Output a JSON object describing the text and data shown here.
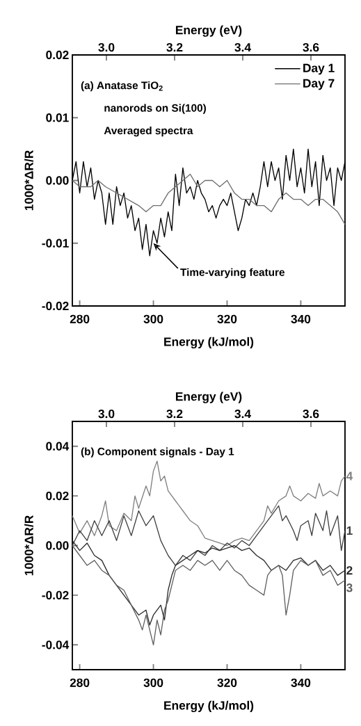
{
  "chart_data": [
    {
      "type": "line",
      "xlabel": "Energy (kJ/mol)",
      "x2label": "Energy (eV)",
      "ylabel": "1000*ΔR/R",
      "xlim": [
        278,
        352
      ],
      "xticks": [
        280,
        300,
        320,
        340
      ],
      "x2lim": [
        2.9,
        3.7
      ],
      "x2ticks": [
        {
          "value": 3.0,
          "label": "3.0"
        },
        3.2,
        3.4,
        3.6
      ],
      "ylim": [
        -0.02,
        0.02
      ],
      "yticks": [
        -0.02,
        -0.01,
        {
          "value": 0,
          "label": "0.00"
        },
        0.01,
        0.02
      ],
      "legend": "top right",
      "marker": "none",
      "annotations": [
        "(a) Anatase TiO$_{2}$",
        "nanorods on Si(100)",
        "Averaged spectra",
        {
          "text": "Time-varying feature",
          "x": 300,
          "y": -0.01
        }
      ],
      "series": [
        {
          "name": "Day 1",
          "color": "#000000",
          "x": [
            278,
            279,
            280,
            281,
            282,
            283,
            284,
            285,
            286,
            287,
            288,
            289,
            290,
            291,
            292,
            293,
            294,
            295,
            296,
            297,
            298,
            299,
            300,
            301,
            302,
            303,
            304,
            305,
            306,
            307,
            308,
            309,
            310,
            311,
            312,
            313,
            314,
            315,
            316,
            317,
            318,
            319,
            320,
            321,
            322,
            323,
            324,
            325,
            326,
            327,
            328,
            329,
            330,
            331,
            332,
            333,
            334,
            335,
            336,
            337,
            338,
            339,
            340,
            341,
            342,
            343,
            344,
            345,
            346,
            347,
            348,
            349,
            350,
            351,
            352
          ],
          "values": [
            0.0,
            0.003,
            -0.002,
            0.003,
            -0.001,
            0.002,
            -0.003,
            0.0,
            -0.002,
            -0.007,
            -0.002,
            -0.007,
            -0.001,
            -0.004,
            -0.002,
            -0.006,
            -0.004,
            -0.008,
            -0.006,
            -0.011,
            -0.007,
            -0.012,
            -0.008,
            -0.01,
            -0.006,
            -0.009,
            -0.005,
            -0.008,
            0.001,
            -0.004,
            0.002,
            -0.002,
            -0.001,
            -0.003,
            0.0,
            -0.002,
            -0.003,
            -0.005,
            -0.004,
            -0.006,
            -0.004,
            -0.003,
            -0.004,
            -0.002,
            -0.005,
            -0.008,
            -0.006,
            -0.003,
            -0.004,
            -0.002,
            -0.004,
            -0.001,
            0.003,
            -0.001,
            0.003,
            0.0,
            0.002,
            -0.003,
            0.004,
            0.0,
            0.005,
            -0.001,
            0.002,
            -0.002,
            0.005,
            -0.001,
            0.003,
            -0.004,
            0.004,
            0.0,
            0.002,
            -0.004,
            0.002,
            0.0,
            0.003
          ]
        },
        {
          "name": "Day 7",
          "color": "#6e6e6e",
          "x": [
            278,
            280,
            283,
            285,
            287,
            290,
            293,
            296,
            298,
            300,
            302,
            304,
            306,
            308,
            310,
            312,
            314,
            316,
            318,
            320,
            322,
            324,
            326,
            328,
            330,
            332,
            334,
            336,
            338,
            340,
            342,
            344,
            346,
            348,
            350,
            352
          ],
          "values": [
            0.0,
            -0.001,
            -0.001,
            0.0,
            -0.001,
            -0.002,
            -0.003,
            -0.004,
            -0.005,
            -0.004,
            -0.004,
            -0.002,
            -0.001,
            0.0,
            0.001,
            -0.001,
            0.0,
            0.0,
            -0.001,
            0.0,
            -0.002,
            -0.003,
            -0.003,
            -0.004,
            -0.004,
            -0.005,
            -0.003,
            -0.002,
            -0.003,
            -0.003,
            -0.004,
            -0.003,
            -0.003,
            -0.004,
            -0.005,
            -0.007
          ]
        }
      ]
    },
    {
      "type": "line",
      "xlabel": "Energy (kJ/mol)",
      "x2label": "Energy (eV)",
      "ylabel": "1000*ΔR/R",
      "xlim": [
        278,
        352
      ],
      "xticks": [
        280,
        300,
        320,
        340
      ],
      "x2lim": [
        2.9,
        3.7
      ],
      "x2ticks": [
        {
          "value": 3.0,
          "label": "3.0"
        },
        3.2,
        3.4,
        3.6
      ],
      "ylim": [
        -0.05,
        0.05
      ],
      "yticks": [
        -0.04,
        -0.02,
        {
          "value": 0,
          "label": "0.00"
        },
        0.02,
        0.04
      ],
      "marker": "none",
      "annotations": [
        "(b) Component signals - Day 1"
      ],
      "series": [
        {
          "name": "4",
          "color": "#808080",
          "x": [
            278,
            280,
            282,
            284,
            286,
            287,
            288,
            290,
            292,
            294,
            295,
            296,
            298,
            299,
            300,
            301,
            302,
            303,
            304,
            306,
            308,
            310,
            312,
            314,
            316,
            318,
            320,
            322,
            324,
            326,
            328,
            330,
            331,
            332,
            334,
            336,
            337,
            338,
            340,
            342,
            344,
            345,
            346,
            348,
            350,
            351,
            352
          ],
          "values": [
            0.012,
            0.005,
            0.01,
            0.004,
            0.012,
            0.018,
            0.008,
            0.006,
            0.013,
            0.01,
            0.02,
            0.015,
            0.024,
            0.02,
            0.03,
            0.034,
            0.026,
            0.028,
            0.022,
            0.018,
            0.014,
            0.01,
            0.008,
            0.003,
            0.002,
            0.001,
            0.0,
            0.002,
            0.003,
            0.002,
            0.006,
            0.01,
            0.016,
            0.013,
            0.018,
            0.02,
            0.024,
            0.02,
            0.018,
            0.021,
            0.019,
            0.025,
            0.02,
            0.022,
            0.02,
            0.026,
            0.028
          ]
        },
        {
          "name": "1",
          "color": "#404040",
          "x": [
            278,
            280,
            282,
            284,
            286,
            288,
            290,
            292,
            294,
            296,
            298,
            300,
            302,
            304,
            306,
            308,
            310,
            312,
            314,
            316,
            318,
            320,
            322,
            324,
            326,
            328,
            330,
            332,
            334,
            335,
            336,
            338,
            339,
            340,
            342,
            343,
            344,
            346,
            347,
            348,
            350,
            351,
            352
          ],
          "values": [
            0.0,
            0.006,
            0.002,
            0.01,
            0.004,
            0.01,
            0.002,
            0.012,
            0.004,
            0.014,
            0.008,
            0.012,
            0.002,
            -0.004,
            -0.008,
            -0.004,
            -0.006,
            -0.002,
            -0.004,
            0.0,
            -0.002,
            0.001,
            -0.001,
            0.002,
            0.0,
            0.004,
            0.008,
            0.012,
            0.016,
            0.01,
            0.012,
            0.006,
            0.002,
            0.008,
            0.01,
            0.004,
            0.013,
            0.006,
            0.014,
            0.004,
            0.012,
            -0.002,
            0.006
          ]
        },
        {
          "name": "2",
          "color": "#2a2a2a",
          "x": [
            278,
            280,
            282,
            284,
            286,
            288,
            290,
            292,
            294,
            296,
            298,
            299,
            300,
            302,
            303,
            304,
            305,
            306,
            308,
            310,
            312,
            314,
            316,
            318,
            320,
            322,
            324,
            326,
            328,
            330,
            332,
            334,
            336,
            338,
            340,
            342,
            344,
            346,
            348,
            350,
            352
          ],
          "values": [
            0.002,
            -0.002,
            0.001,
            -0.004,
            -0.006,
            -0.012,
            -0.016,
            -0.02,
            -0.024,
            -0.028,
            -0.026,
            -0.032,
            -0.028,
            -0.024,
            -0.03,
            -0.018,
            -0.012,
            -0.008,
            -0.006,
            -0.004,
            -0.002,
            -0.003,
            -0.001,
            -0.002,
            -0.001,
            0.0,
            -0.002,
            -0.001,
            -0.004,
            -0.006,
            -0.01,
            -0.008,
            -0.01,
            -0.006,
            -0.005,
            -0.008,
            -0.006,
            -0.01,
            -0.008,
            -0.012,
            -0.01
          ]
        },
        {
          "name": "3",
          "color": "#606060",
          "x": [
            278,
            280,
            282,
            284,
            286,
            288,
            290,
            292,
            294,
            296,
            297,
            298,
            300,
            301,
            302,
            303,
            304,
            305,
            306,
            308,
            310,
            312,
            314,
            316,
            318,
            320,
            322,
            324,
            326,
            328,
            330,
            331,
            332,
            334,
            335,
            336,
            337,
            338,
            340,
            342,
            344,
            346,
            348,
            350,
            352
          ],
          "values": [
            0.0,
            -0.004,
            -0.008,
            -0.006,
            -0.01,
            -0.012,
            -0.016,
            -0.018,
            -0.024,
            -0.03,
            -0.034,
            -0.028,
            -0.04,
            -0.03,
            -0.036,
            -0.026,
            -0.022,
            -0.016,
            -0.01,
            -0.008,
            -0.01,
            -0.006,
            -0.008,
            -0.006,
            -0.01,
            -0.006,
            -0.01,
            -0.012,
            -0.016,
            -0.018,
            -0.02,
            -0.012,
            -0.01,
            -0.008,
            -0.012,
            -0.028,
            -0.02,
            -0.01,
            -0.006,
            -0.008,
            -0.006,
            -0.012,
            -0.01,
            -0.016,
            -0.014
          ]
        }
      ]
    }
  ]
}
